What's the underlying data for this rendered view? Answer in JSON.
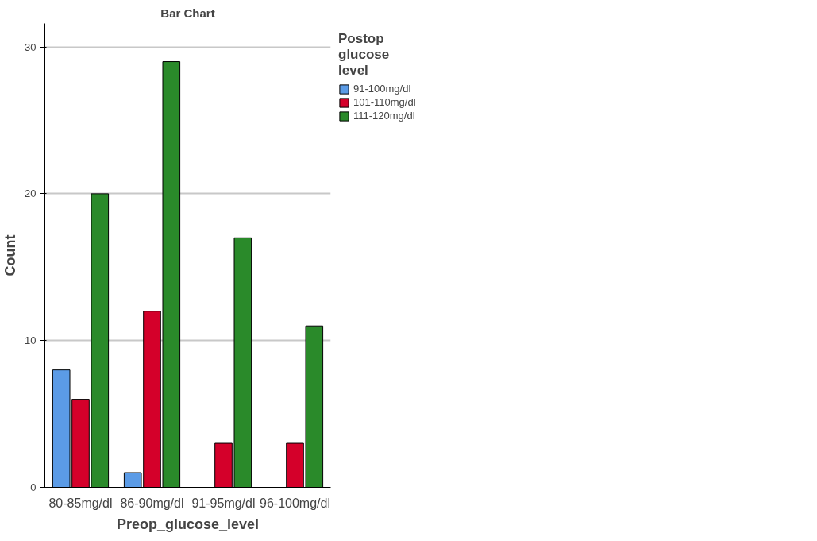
{
  "chart_data": {
    "type": "bar",
    "title": "Bar Chart",
    "xlabel": "Preop_glucose_level",
    "ylabel": "Count",
    "legend_title": "Postop\nglucose\nlevel",
    "categories": [
      "80-85mg/dl",
      "86-90mg/dl",
      "91-95mg/dl",
      "96-100mg/dl"
    ],
    "series": [
      {
        "name": "91-100mg/dl",
        "color": "#5b9be6",
        "values": [
          8,
          1,
          null,
          null
        ]
      },
      {
        "name": "101-110mg/dl",
        "color": "#d4002a",
        "values": [
          6,
          12,
          3,
          3
        ]
      },
      {
        "name": "111-120mg/dl",
        "color": "#2a8a2a",
        "values": [
          20,
          29,
          17,
          11
        ]
      }
    ],
    "ylim": [
      0,
      31.6
    ],
    "yticks": [
      0,
      10,
      20,
      30
    ],
    "grid": "y",
    "legend": "top right"
  }
}
